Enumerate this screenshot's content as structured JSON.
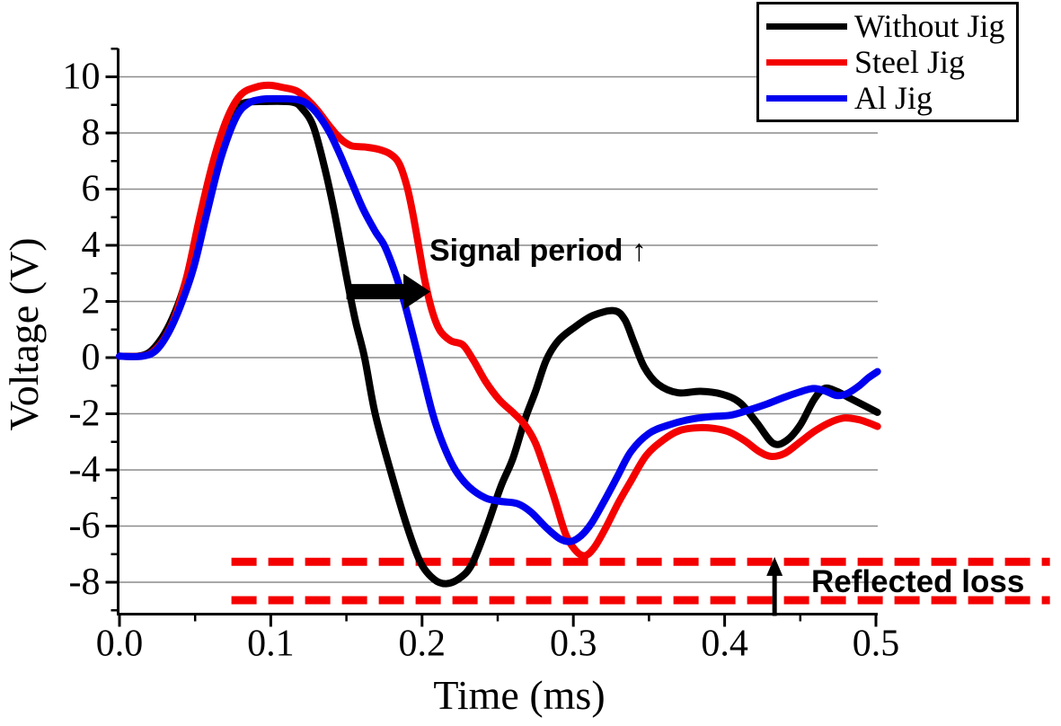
{
  "figure": {
    "background": "#ffffff"
  },
  "chart_data": {
    "type": "line",
    "title": "",
    "xlabel": "Time (ms)",
    "ylabel": "Voltage (V)",
    "xlim": [
      0,
      0.5
    ],
    "ylim": [
      -9.1,
      11
    ],
    "xticks": [
      0,
      0.1,
      0.2,
      0.3,
      0.4,
      0.5
    ],
    "xtick_labels": [
      "0.0",
      "0.1",
      "0.2",
      "0.3",
      "0.4",
      "0.5"
    ],
    "x_minor_ticks": [
      0.05,
      0.15,
      0.25,
      0.35,
      0.45
    ],
    "yticks": [
      10,
      8,
      6,
      4,
      2,
      0,
      -2,
      -4,
      -6,
      -8
    ],
    "ytick_labels": [
      "10",
      "8",
      "6",
      "4",
      "2",
      "0",
      "-2",
      "-4",
      "-6",
      "-8"
    ],
    "y_minor_ticks": [
      11,
      9,
      7,
      5,
      3,
      1,
      -1,
      -3,
      -5,
      -7,
      -9
    ],
    "grid": "horizontal-major",
    "grid_color": "#8c8c8c",
    "axis_color": "#000000",
    "legend_position": "top-right",
    "series": [
      {
        "name": "Without Jig",
        "color": "#000000",
        "points": [
          [
            0,
            0.05
          ],
          [
            0.012,
            0.05
          ],
          [
            0.02,
            0.2
          ],
          [
            0.028,
            0.7
          ],
          [
            0.035,
            1.4
          ],
          [
            0.042,
            2.4
          ],
          [
            0.05,
            4.0
          ],
          [
            0.058,
            6.0
          ],
          [
            0.068,
            8.0
          ],
          [
            0.077,
            8.85
          ],
          [
            0.083,
            9.08
          ],
          [
            0.095,
            9.12
          ],
          [
            0.114,
            9.1
          ],
          [
            0.121,
            8.85
          ],
          [
            0.128,
            8.25
          ],
          [
            0.135,
            6.9
          ],
          [
            0.142,
            5.2
          ],
          [
            0.15,
            2.9
          ],
          [
            0.156,
            1.3
          ],
          [
            0.162,
            0
          ],
          [
            0.169,
            -2.0
          ],
          [
            0.179,
            -4.0
          ],
          [
            0.19,
            -6.0
          ],
          [
            0.199,
            -7.3
          ],
          [
            0.208,
            -7.9
          ],
          [
            0.216,
            -8.05
          ],
          [
            0.225,
            -7.85
          ],
          [
            0.233,
            -7.35
          ],
          [
            0.243,
            -6.0
          ],
          [
            0.252,
            -4.6
          ],
          [
            0.26,
            -3.6
          ],
          [
            0.268,
            -2.2
          ],
          [
            0.275,
            -1.2
          ],
          [
            0.282,
            -0.1
          ],
          [
            0.29,
            0.6
          ],
          [
            0.3,
            1.05
          ],
          [
            0.313,
            1.5
          ],
          [
            0.327,
            1.67
          ],
          [
            0.334,
            1.35
          ],
          [
            0.34,
            0.55
          ],
          [
            0.347,
            -0.35
          ],
          [
            0.356,
            -0.95
          ],
          [
            0.369,
            -1.25
          ],
          [
            0.384,
            -1.2
          ],
          [
            0.398,
            -1.3
          ],
          [
            0.41,
            -1.6
          ],
          [
            0.421,
            -2.3
          ],
          [
            0.432,
            -3.05
          ],
          [
            0.441,
            -2.95
          ],
          [
            0.45,
            -2.4
          ],
          [
            0.459,
            -1.5
          ],
          [
            0.466,
            -1.1
          ],
          [
            0.474,
            -1.2
          ],
          [
            0.483,
            -1.45
          ],
          [
            0.492,
            -1.7
          ],
          [
            0.501,
            -1.95
          ]
        ]
      },
      {
        "name": "Steel Jig",
        "color": "#f40000",
        "points": [
          [
            0,
            0.05
          ],
          [
            0.014,
            0.05
          ],
          [
            0.022,
            0.2
          ],
          [
            0.03,
            0.7
          ],
          [
            0.037,
            1.5
          ],
          [
            0.045,
            3.0
          ],
          [
            0.053,
            5.0
          ],
          [
            0.062,
            7.0
          ],
          [
            0.071,
            8.5
          ],
          [
            0.08,
            9.35
          ],
          [
            0.09,
            9.63
          ],
          [
            0.099,
            9.7
          ],
          [
            0.108,
            9.62
          ],
          [
            0.117,
            9.5
          ],
          [
            0.124,
            9.2
          ],
          [
            0.131,
            8.8
          ],
          [
            0.138,
            8.3
          ],
          [
            0.146,
            7.8
          ],
          [
            0.153,
            7.55
          ],
          [
            0.162,
            7.5
          ],
          [
            0.171,
            7.42
          ],
          [
            0.179,
            7.25
          ],
          [
            0.185,
            6.9
          ],
          [
            0.19,
            6.1
          ],
          [
            0.194,
            5.1
          ],
          [
            0.198,
            3.9
          ],
          [
            0.202,
            2.7
          ],
          [
            0.207,
            1.6
          ],
          [
            0.212,
            0.95
          ],
          [
            0.219,
            0.6
          ],
          [
            0.227,
            0.45
          ],
          [
            0.234,
            -0.1
          ],
          [
            0.242,
            -0.85
          ],
          [
            0.251,
            -1.5
          ],
          [
            0.26,
            -1.95
          ],
          [
            0.268,
            -2.4
          ],
          [
            0.275,
            -3.05
          ],
          [
            0.281,
            -3.95
          ],
          [
            0.288,
            -5.1
          ],
          [
            0.295,
            -6.3
          ],
          [
            0.302,
            -6.9
          ],
          [
            0.308,
            -7.05
          ],
          [
            0.314,
            -6.75
          ],
          [
            0.321,
            -6.1
          ],
          [
            0.33,
            -5.15
          ],
          [
            0.338,
            -4.4
          ],
          [
            0.348,
            -3.5
          ],
          [
            0.359,
            -2.95
          ],
          [
            0.37,
            -2.6
          ],
          [
            0.382,
            -2.5
          ],
          [
            0.393,
            -2.52
          ],
          [
            0.403,
            -2.65
          ],
          [
            0.413,
            -2.95
          ],
          [
            0.423,
            -3.35
          ],
          [
            0.431,
            -3.52
          ],
          [
            0.44,
            -3.4
          ],
          [
            0.45,
            -3.0
          ],
          [
            0.46,
            -2.6
          ],
          [
            0.47,
            -2.3
          ],
          [
            0.479,
            -2.15
          ],
          [
            0.488,
            -2.2
          ],
          [
            0.495,
            -2.32
          ],
          [
            0.501,
            -2.45
          ]
        ]
      },
      {
        "name": "Al Jig",
        "color": "#0000f0",
        "points": [
          [
            0,
            0.05
          ],
          [
            0.015,
            0.05
          ],
          [
            0.024,
            0.25
          ],
          [
            0.032,
            0.85
          ],
          [
            0.04,
            1.8
          ],
          [
            0.049,
            3.2
          ],
          [
            0.058,
            5.2
          ],
          [
            0.067,
            7.1
          ],
          [
            0.077,
            8.55
          ],
          [
            0.085,
            9.05
          ],
          [
            0.094,
            9.2
          ],
          [
            0.105,
            9.22
          ],
          [
            0.118,
            9.18
          ],
          [
            0.125,
            9.0
          ],
          [
            0.132,
            8.6
          ],
          [
            0.139,
            8.0
          ],
          [
            0.146,
            7.2
          ],
          [
            0.153,
            6.3
          ],
          [
            0.161,
            5.3
          ],
          [
            0.169,
            4.5
          ],
          [
            0.175,
            4.0
          ],
          [
            0.181,
            3.2
          ],
          [
            0.187,
            2.2
          ],
          [
            0.193,
            1.0
          ],
          [
            0.2,
            -0.5
          ],
          [
            0.207,
            -2.0
          ],
          [
            0.214,
            -3.1
          ],
          [
            0.222,
            -4.0
          ],
          [
            0.231,
            -4.6
          ],
          [
            0.242,
            -5.0
          ],
          [
            0.252,
            -5.12
          ],
          [
            0.263,
            -5.2
          ],
          [
            0.272,
            -5.5
          ],
          [
            0.282,
            -6.05
          ],
          [
            0.291,
            -6.45
          ],
          [
            0.298,
            -6.55
          ],
          [
            0.305,
            -6.35
          ],
          [
            0.312,
            -5.9
          ],
          [
            0.32,
            -5.15
          ],
          [
            0.329,
            -4.25
          ],
          [
            0.338,
            -3.35
          ],
          [
            0.35,
            -2.7
          ],
          [
            0.363,
            -2.4
          ],
          [
            0.377,
            -2.2
          ],
          [
            0.391,
            -2.1
          ],
          [
            0.404,
            -2.05
          ],
          [
            0.417,
            -1.85
          ],
          [
            0.428,
            -1.65
          ],
          [
            0.44,
            -1.4
          ],
          [
            0.451,
            -1.2
          ],
          [
            0.459,
            -1.1
          ],
          [
            0.467,
            -1.2
          ],
          [
            0.474,
            -1.35
          ],
          [
            0.481,
            -1.28
          ],
          [
            0.489,
            -1.0
          ],
          [
            0.495,
            -0.72
          ],
          [
            0.501,
            -0.5
          ]
        ]
      }
    ],
    "annotations": {
      "signal_period": {
        "label": "Signal period ↑",
        "text_color": "#000000",
        "arrow": {
          "from_t": 0.15,
          "to_t": 0.2055,
          "v": 2.35
        }
      },
      "reflected_loss": {
        "label": "Reflected loss",
        "text_color": "#000000",
        "band_color": "#f40000",
        "band_top_v": -7.27,
        "band_bottom_v": -8.64,
        "band_t_start": 0.074,
        "band_t_end": 0.615,
        "arrow_t": 0.433,
        "arrow_v_from": -9.2,
        "arrow_v_tip": -7.1
      }
    }
  }
}
